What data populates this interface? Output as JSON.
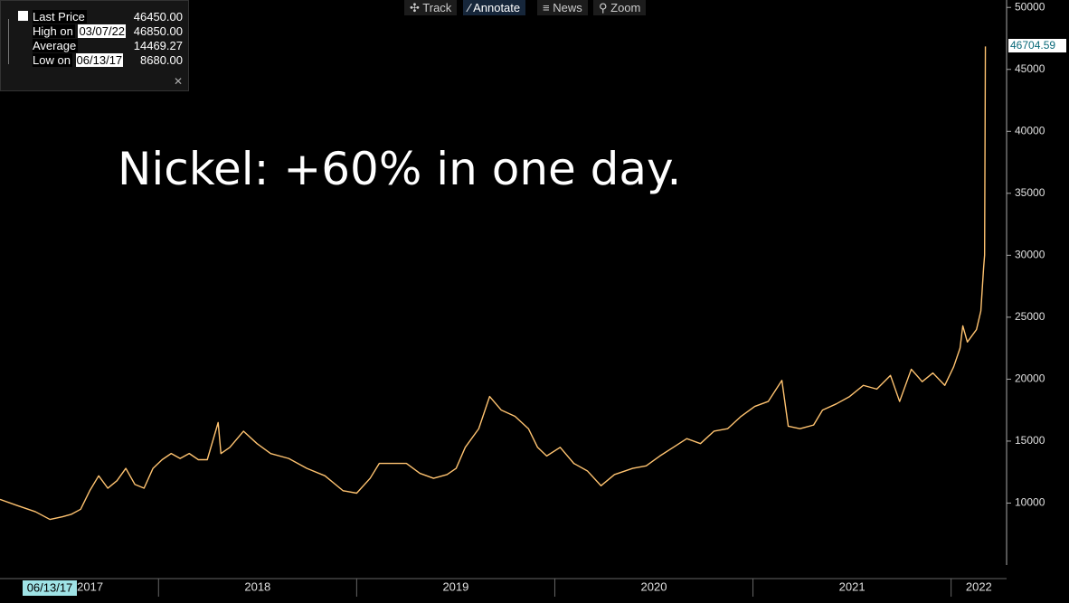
{
  "chart_data": {
    "type": "line",
    "annotation": "Nickel: +60% in one day.",
    "toolbar": [
      "Track",
      "Annotate",
      "News",
      "Zoom"
    ],
    "stats": [
      {
        "label": "Last Price",
        "value": "46450.00"
      },
      {
        "label": "High on",
        "date": "03/07/22",
        "value": "46850.00"
      },
      {
        "label": "Average",
        "value": "14469.27"
      },
      {
        "label": "Low on",
        "date": "06/13/17",
        "value": "8680.00"
      }
    ],
    "cursor_date": "06/13/17",
    "last_value_label": "46704.59",
    "series": [
      {
        "name": "Nickel",
        "color": "#ffc370",
        "x": [
          2017.2,
          2017.287,
          2017.379,
          2017.452,
          2017.516,
          2017.561,
          2017.607,
          2017.653,
          2017.698,
          2017.744,
          2017.79,
          2017.835,
          2017.881,
          2017.927,
          2017.972,
          2018.018,
          2018.064,
          2018.109,
          2018.155,
          2018.201,
          2018.246,
          2018.301,
          2018.315,
          2018.36,
          2018.429,
          2018.497,
          2018.566,
          2018.657,
          2018.749,
          2018.84,
          2018.931,
          2019.0,
          2019.068,
          2019.114,
          2019.182,
          2019.251,
          2019.319,
          2019.388,
          2019.456,
          2019.502,
          2019.548,
          2019.616,
          2019.671,
          2019.73,
          2019.799,
          2019.867,
          2019.913,
          2019.959,
          2020.027,
          2020.096,
          2020.164,
          2020.233,
          2020.301,
          2020.393,
          2020.461,
          2020.53,
          2020.598,
          2020.666,
          2020.735,
          2020.803,
          2020.872,
          2020.94,
          2021.009,
          2021.077,
          2021.146,
          2021.178,
          2021.237,
          2021.306,
          2021.351,
          2021.42,
          2021.488,
          2021.557,
          2021.625,
          2021.694,
          2021.74,
          2021.799,
          2021.854,
          2021.908,
          2021.968,
          2022.013,
          2022.045,
          2022.059,
          2022.082,
          2022.128,
          2022.15,
          2022.164,
          2022.169,
          2022.173
        ],
        "values": [
          10300,
          9800,
          9300,
          8680,
          8900,
          9100,
          9500,
          11000,
          12200,
          11200,
          11800,
          12800,
          11500,
          11200,
          12800,
          13500,
          14000,
          13600,
          14000,
          13500,
          13500,
          16500,
          14000,
          14500,
          15800,
          14800,
          14000,
          13600,
          12800,
          12200,
          11000,
          10800,
          12000,
          13200,
          13200,
          13200,
          12400,
          12000,
          12300,
          12800,
          14500,
          16000,
          18600,
          17500,
          17000,
          16000,
          14500,
          13800,
          14500,
          13200,
          12600,
          11400,
          12300,
          12800,
          13000,
          13800,
          14500,
          15200,
          14800,
          15800,
          16000,
          17000,
          17800,
          18200,
          19900,
          16200,
          16000,
          16300,
          17500,
          18000,
          18600,
          19500,
          19200,
          20300,
          18200,
          20800,
          19800,
          20500,
          19500,
          21000,
          22500,
          24300,
          23000,
          24000,
          25500,
          29000,
          30000,
          46850
        ]
      }
    ],
    "xlim": [
      2017.2,
      2022.28
    ],
    "xticks": [
      {
        "value": 2017,
        "label": "2017"
      },
      {
        "value": 2018,
        "label": "2018"
      },
      {
        "value": 2019,
        "label": "2019"
      },
      {
        "value": 2020,
        "label": "2020"
      },
      {
        "value": 2021,
        "label": "2021"
      },
      {
        "value": 2022,
        "label": "2022"
      }
    ],
    "ylim": [
      5000,
      50600
    ],
    "yticks": [
      10000,
      15000,
      20000,
      25000,
      30000,
      35000,
      40000,
      45000,
      50000
    ]
  }
}
